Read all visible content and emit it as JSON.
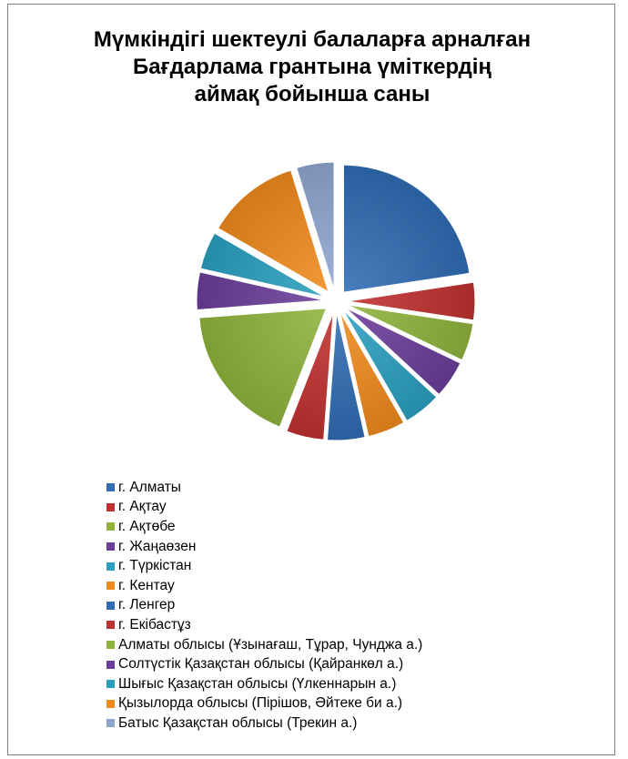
{
  "chart_data": {
    "type": "pie",
    "title_lines": [
      "Мүмкіндігі шектеулі балаларға арналған",
      "Бағдарлама грантына үміткердің",
      "аймақ бойынша саны"
    ],
    "legend_position": "bottom",
    "slices": [
      {
        "label": "г. Алматы",
        "value": 19,
        "color": "#2f6cb3"
      },
      {
        "label": "г. Ақтау",
        "value": 4,
        "color": "#c0312f"
      },
      {
        "label": "г. Ақтөбе",
        "value": 4,
        "color": "#8db33b"
      },
      {
        "label": "г. Жаңаөзен",
        "value": 4,
        "color": "#6b3d9a"
      },
      {
        "label": "г. Түркістан",
        "value": 4,
        "color": "#2a9fbf"
      },
      {
        "label": "г. Кентау",
        "value": 4,
        "color": "#ef8a1e"
      },
      {
        "label": "г. Ленгер",
        "value": 4,
        "color": "#2f6cb3"
      },
      {
        "label": "г. Екібастұз",
        "value": 4,
        "color": "#c0312f"
      },
      {
        "label": "Алматы облысы (Ұзынағаш, Тұрар, Чунджа а.)",
        "value": 15,
        "color": "#8db33b"
      },
      {
        "label": "Солтүстік Қазақстан облысы (Қайранкөл а.)",
        "value": 4,
        "color": "#6b3d9a"
      },
      {
        "label": "Шығыс Қазақстан облысы (Үлкеннарын а.)",
        "value": 4,
        "color": "#2a9fbf"
      },
      {
        "label": "Қызылорда облысы (Пірішов, Әйтеке би а.)",
        "value": 10,
        "color": "#ef8a1e"
      },
      {
        "label": "Батыс Қазақстан облысы (Трекин а.)",
        "value": 4,
        "color": "#8ea6cf"
      }
    ]
  }
}
